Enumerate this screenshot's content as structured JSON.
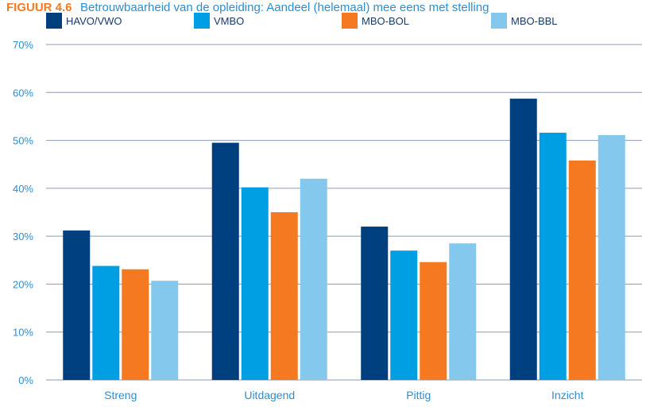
{
  "chart_data": {
    "type": "bar",
    "title_prefix": "FIGUUR 4.6",
    "title": "Betrouwbaarheid van de opleiding: Aandeel (helemaal) mee eens met stelling",
    "categories": [
      "Streng",
      "Uitdagend",
      "Pittig",
      "Inzicht"
    ],
    "series": [
      {
        "name": "HAVO/VWO",
        "color": "#003f7d",
        "values": [
          31.2,
          49.5,
          32.0,
          58.7
        ]
      },
      {
        "name": "VMBO",
        "color": "#009fe3",
        "values": [
          23.8,
          40.2,
          27.0,
          51.6
        ]
      },
      {
        "name": "MBO-BOL",
        "color": "#f47920",
        "values": [
          23.1,
          35.0,
          24.6,
          45.8
        ]
      },
      {
        "name": "MBO-BBL",
        "color": "#85c8ee",
        "values": [
          20.7,
          42.0,
          28.5,
          51.1
        ]
      }
    ],
    "y_ticks": [
      "0%",
      "10%",
      "20%",
      "30%",
      "40%",
      "50%",
      "60%",
      "70%"
    ],
    "ylim": [
      0,
      70
    ],
    "grid": true,
    "legend_position": "top"
  }
}
